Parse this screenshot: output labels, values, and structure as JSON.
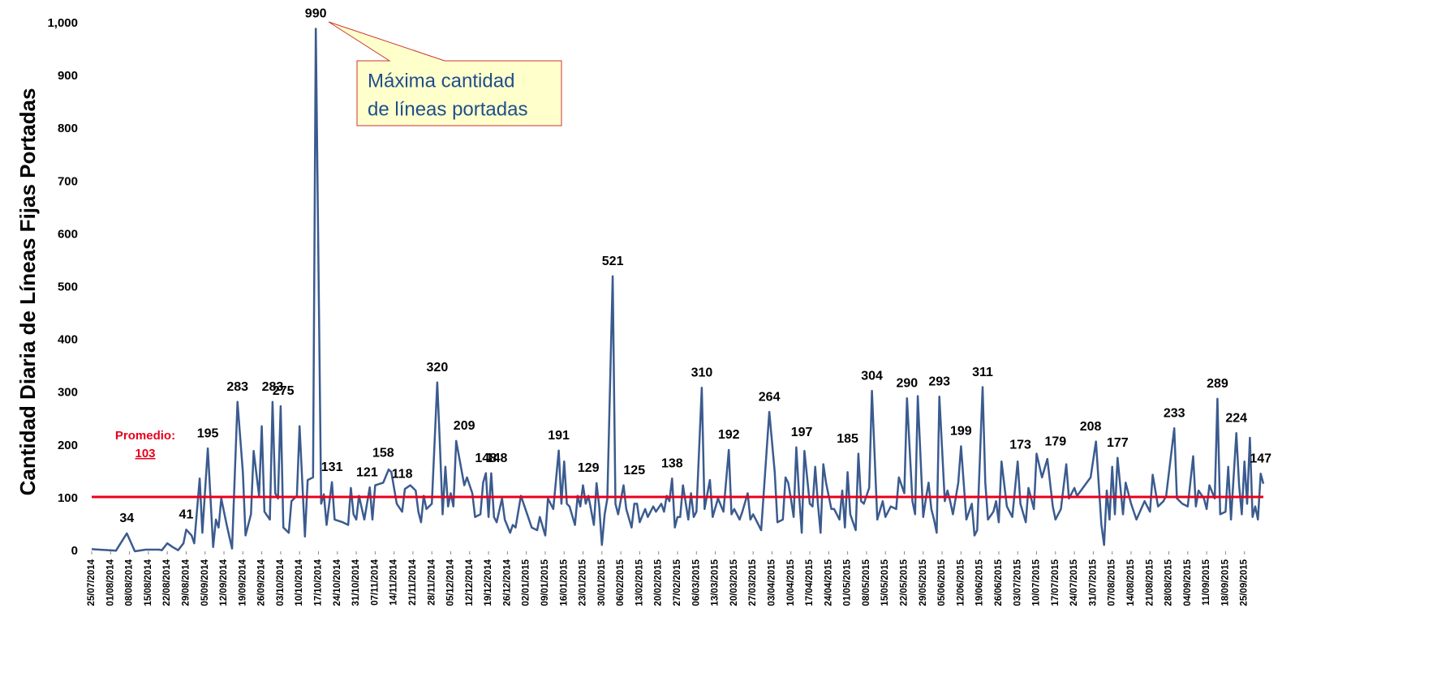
{
  "chart_data": {
    "type": "line",
    "y_label": "Cantidad Diaria de Líneas Fijas Portadas",
    "color": "#3b5b8f",
    "ylim": [
      0,
      1000
    ],
    "yticks": [
      0,
      100,
      200,
      300,
      400,
      500,
      600,
      700,
      800,
      900,
      {
        "value": 1000,
        "label": "1,000"
      }
    ],
    "xlim": [
      "25/07/2014",
      "02/10/2015"
    ],
    "xticks": [
      "25/07/2014",
      "01/08/2014",
      "08/08/2014",
      "15/08/2014",
      "22/08/2014",
      "29/08/2014",
      "05/09/2014",
      "12/09/2014",
      "19/09/2014",
      "26/09/2014",
      "03/10/2014",
      "10/10/2014",
      "17/10/2014",
      "24/10/2014",
      "31/10/2014",
      "07/11/2014",
      "14/11/2014",
      "21/11/2014",
      "28/11/2014",
      "05/12/2014",
      "12/12/2014",
      "19/12/2014",
      "26/12/2014",
      "02/01/2015",
      "09/01/2015",
      "16/01/2015",
      "23/01/2015",
      "30/01/2015",
      "06/02/2015",
      "13/02/2015",
      "20/02/2015",
      "27/02/2015",
      "06/03/2015",
      "13/03/2015",
      "20/03/2015",
      "27/03/2015",
      "03/04/2015",
      "10/04/2015",
      "17/04/2015",
      "24/04/2015",
      "01/05/2015",
      "08/05/2015",
      "15/05/2015",
      "22/05/2015",
      "29/05/2015",
      "05/06/2015",
      "12/06/2015",
      "19/06/2015",
      "26/06/2015",
      "03/07/2015",
      "10/07/2015",
      "17/07/2015",
      "24/07/2015",
      "31/07/2015",
      "07/08/2015",
      "14/08/2015",
      "21/08/2015",
      "28/08/2015",
      "04/09/2015",
      "11/09/2015",
      "18/09/2015",
      "25/09/2015"
    ],
    "x": [
      "25/07/2014",
      "03/08/2014",
      "07/08/2014",
      "10/08/2014",
      "14/08/2014",
      "19/08/2014",
      "20/08/2014",
      "22/08/2014",
      "24/08/2014",
      "26/08/2014",
      "28/08/2014",
      "29/08/2014",
      "31/08/2014",
      "01/09/2014",
      "03/09/2014",
      "04/09/2014",
      "06/09/2014",
      "08/09/2014",
      "09/09/2014",
      "10/09/2014",
      "11/09/2014",
      "13/09/2014",
      "15/09/2014",
      "17/09/2014",
      "19/09/2014",
      "20/09/2014",
      "22/09/2014",
      "23/09/2014",
      "25/09/2014",
      "26/09/2014",
      "27/09/2014",
      "29/09/2014",
      "30/09/2014",
      "01/10/2014",
      "02/10/2014",
      "03/10/2014",
      "04/10/2014",
      "06/10/2014",
      "07/10/2014",
      "09/10/2014",
      "10/10/2014",
      "12/10/2014",
      "13/10/2014",
      "15/10/2014",
      "16/10/2014",
      "18/10/2014",
      "19/10/2014",
      "20/10/2014",
      "22/10/2014",
      "23/10/2014",
      "26/10/2014",
      "28/10/2014",
      "29/10/2014",
      "30/10/2014",
      "31/10/2014",
      "01/11/2014",
      "03/11/2014",
      "05/11/2014",
      "06/11/2014",
      "07/11/2014",
      "10/11/2014",
      "12/11/2014",
      "13/11/2014",
      "15/11/2014",
      "17/11/2014",
      "18/11/2014",
      "20/11/2014",
      "22/11/2014",
      "23/11/2014",
      "24/11/2014",
      "25/11/2014",
      "26/11/2014",
      "28/11/2014",
      "30/11/2014",
      "01/12/2014",
      "02/12/2014",
      "03/12/2014",
      "04/12/2014",
      "05/12/2014",
      "06/12/2014",
      "07/12/2014",
      "10/12/2014",
      "11/12/2014",
      "13/12/2014",
      "14/12/2014",
      "16/12/2014",
      "17/12/2014",
      "18/12/2014",
      "19/12/2014",
      "20/12/2014",
      "21/12/2014",
      "22/12/2014",
      "24/12/2014",
      "25/12/2014",
      "27/12/2014",
      "28/12/2014",
      "29/12/2014",
      "31/12/2014",
      "04/01/2015",
      "06/01/2015",
      "07/01/2015",
      "09/01/2015",
      "10/01/2015",
      "12/01/2015",
      "14/01/2015",
      "15/01/2015",
      "16/01/2015",
      "17/01/2015",
      "18/01/2015",
      "20/01/2015",
      "21/01/2015",
      "22/01/2015",
      "23/01/2015",
      "24/01/2015",
      "25/01/2015",
      "27/01/2015",
      "28/01/2015",
      "29/01/2015",
      "30/01/2015",
      "31/01/2015",
      "01/02/2015",
      "03/02/2015",
      "04/02/2015",
      "05/02/2015",
      "07/02/2015",
      "08/02/2015",
      "10/02/2015",
      "11/02/2015",
      "12/02/2015",
      "13/02/2015",
      "15/02/2015",
      "16/02/2015",
      "18/02/2015",
      "19/02/2015",
      "21/02/2015",
      "22/02/2015",
      "23/02/2015",
      "24/02/2015",
      "25/02/2015",
      "26/02/2015",
      "27/02/2015",
      "28/02/2015",
      "01/03/2015",
      "03/03/2015",
      "04/03/2015",
      "05/03/2015",
      "06/03/2015",
      "08/03/2015",
      "09/03/2015",
      "11/03/2015",
      "12/03/2015",
      "14/03/2015",
      "16/03/2015",
      "18/03/2015",
      "19/03/2015",
      "20/03/2015",
      "22/03/2015",
      "23/03/2015",
      "25/03/2015",
      "26/03/2015",
      "27/03/2015",
      "30/03/2015",
      "02/04/2015",
      "04/04/2015",
      "05/04/2015",
      "07/04/2015",
      "08/04/2015",
      "09/04/2015",
      "10/04/2015",
      "11/04/2015",
      "12/04/2015",
      "13/04/2015",
      "14/04/2015",
      "15/04/2015",
      "17/04/2015",
      "18/04/2015",
      "19/04/2015",
      "20/04/2015",
      "21/04/2015",
      "22/04/2015",
      "23/04/2015",
      "25/04/2015",
      "26/04/2015",
      "28/04/2015",
      "29/04/2015",
      "30/04/2015",
      "01/05/2015",
      "02/05/2015",
      "04/05/2015",
      "05/05/2015",
      "06/05/2015",
      "07/05/2015",
      "09/05/2015",
      "10/05/2015",
      "12/05/2015",
      "14/05/2015",
      "15/05/2015",
      "17/05/2015",
      "19/05/2015",
      "20/05/2015",
      "22/05/2015",
      "23/05/2015",
      "25/05/2015",
      "26/05/2015",
      "27/05/2015",
      "29/05/2015",
      "30/05/2015",
      "31/05/2015",
      "01/06/2015",
      "02/06/2015",
      "03/06/2015",
      "04/06/2015",
      "06/06/2015",
      "07/06/2015",
      "08/06/2015",
      "09/06/2015",
      "11/06/2015",
      "12/06/2015",
      "14/06/2015",
      "15/06/2015",
      "16/06/2015",
      "17/06/2015",
      "18/06/2015",
      "20/06/2015",
      "21/06/2015",
      "22/06/2015",
      "24/06/2015",
      "25/06/2015",
      "26/06/2015",
      "27/06/2015",
      "29/06/2015",
      "01/07/2015",
      "03/07/2015",
      "04/07/2015",
      "06/07/2015",
      "07/07/2015",
      "09/07/2015",
      "10/07/2015",
      "12/07/2015",
      "14/07/2015",
      "16/07/2015",
      "17/07/2015",
      "19/07/2015",
      "21/07/2015",
      "22/07/2015",
      "24/07/2015",
      "25/07/2015",
      "30/07/2015",
      "01/08/2015",
      "03/08/2015",
      "04/08/2015",
      "05/08/2015",
      "06/08/2015",
      "07/08/2015",
      "08/08/2015",
      "09/08/2015",
      "11/08/2015",
      "12/08/2015",
      "14/08/2015",
      "16/08/2015",
      "19/08/2015",
      "21/08/2015",
      "22/08/2015",
      "24/08/2015",
      "26/08/2015",
      "27/08/2015",
      "30/08/2015",
      "31/08/2015",
      "02/09/2015",
      "04/09/2015",
      "06/09/2015",
      "07/09/2015",
      "08/09/2015",
      "10/09/2015",
      "11/09/2015",
      "12/09/2015",
      "14/09/2015",
      "15/09/2015",
      "16/09/2015",
      "18/09/2015",
      "19/09/2015",
      "20/09/2015",
      "22/09/2015",
      "23/09/2015",
      "24/09/2015",
      "25/09/2015",
      "26/09/2015",
      "27/09/2015",
      "28/09/2015",
      "29/09/2015",
      "30/09/2015",
      "01/10/2015",
      "02/10/2015"
    ],
    "values": [
      4,
      1,
      34,
      0,
      3,
      3,
      2,
      15,
      8,
      2,
      15,
      41,
      30,
      15,
      138,
      35,
      195,
      8,
      60,
      45,
      100,
      50,
      5,
      283,
      150,
      30,
      70,
      190,
      105,
      237,
      75,
      60,
      283,
      110,
      100,
      275,
      45,
      35,
      95,
      105,
      237,
      28,
      135,
      140,
      990,
      90,
      108,
      50,
      131,
      60,
      55,
      50,
      120,
      70,
      60,
      105,
      60,
      121,
      60,
      125,
      130,
      155,
      150,
      90,
      75,
      118,
      125,
      115,
      75,
      55,
      105,
      80,
      90,
      320,
      200,
      70,
      160,
      85,
      110,
      85,
      209,
      125,
      140,
      110,
      65,
      70,
      130,
      148,
      65,
      148,
      65,
      55,
      100,
      60,
      35,
      50,
      45,
      105,
      45,
      40,
      65,
      30,
      100,
      80,
      191,
      90,
      170,
      90,
      85,
      50,
      105,
      85,
      125,
      90,
      105,
      50,
      129,
      85,
      12,
      70,
      100,
      521,
      90,
      70,
      125,
      80,
      45,
      90,
      90,
      55,
      80,
      65,
      85,
      75,
      90,
      75,
      105,
      95,
      138,
      45,
      65,
      65,
      125,
      60,
      110,
      65,
      75,
      310,
      80,
      135,
      65,
      100,
      75,
      192,
      70,
      80,
      60,
      75,
      110,
      60,
      70,
      40,
      264,
      150,
      55,
      60,
      140,
      130,
      100,
      65,
      197,
      110,
      35,
      190,
      90,
      85,
      160,
      90,
      35,
      165,
      130,
      80,
      80,
      60,
      115,
      45,
      150,
      70,
      40,
      185,
      95,
      90,
      120,
      304,
      60,
      95,
      65,
      85,
      80,
      140,
      110,
      290,
      95,
      70,
      294,
      65,
      100,
      130,
      80,
      60,
      35,
      293,
      95,
      115,
      95,
      70,
      130,
      199,
      60,
      75,
      90,
      30,
      40,
      311,
      130,
      60,
      75,
      95,
      55,
      170,
      85,
      65,
      170,
      90,
      55,
      120,
      80,
      185,
      140,
      175,
      85,
      60,
      80,
      165,
      100,
      120,
      105,
      140,
      208,
      50,
      12,
      115,
      60,
      160,
      70,
      177,
      70,
      130,
      90,
      60,
      95,
      75,
      145,
      85,
      95,
      105,
      233,
      100,
      90,
      85,
      180,
      85,
      115,
      100,
      80,
      125,
      100,
      289,
      70,
      75,
      160,
      60,
      224,
      125,
      70,
      170,
      90,
      215,
      65,
      85,
      60,
      147,
      128
    ],
    "data_labels": [
      {
        "x": "07/08/2014",
        "value": 34
      },
      {
        "x": "29/08/2014",
        "value": 41
      },
      {
        "x": "06/09/2014",
        "value": 195
      },
      {
        "x": "17/09/2014",
        "value": 283
      },
      {
        "x": "30/09/2014",
        "value": 283
      },
      {
        "x": "04/10/2014",
        "value": 275
      },
      {
        "x": "16/10/2014",
        "value": 990,
        "color": "#e8001c"
      },
      {
        "x": "22/10/2014",
        "value": 131
      },
      {
        "x": "04/11/2014",
        "value": 121
      },
      {
        "x": "10/11/2014",
        "value": 158
      },
      {
        "x": "17/11/2014",
        "value": 118
      },
      {
        "x": "30/11/2014",
        "value": 320
      },
      {
        "x": "10/12/2014",
        "value": 209
      },
      {
        "x": "18/12/2014",
        "value": 148
      },
      {
        "x": "22/12/2014",
        "value": 148
      },
      {
        "x": "14/01/2015",
        "value": 191
      },
      {
        "x": "25/01/2015",
        "value": 129
      },
      {
        "x": "03/02/2015",
        "value": 521
      },
      {
        "x": "11/02/2015",
        "value": 125
      },
      {
        "x": "25/02/2015",
        "value": 138
      },
      {
        "x": "08/03/2015",
        "value": 310
      },
      {
        "x": "18/03/2015",
        "value": 192
      },
      {
        "x": "02/04/2015",
        "value": 264
      },
      {
        "x": "14/04/2015",
        "value": 197
      },
      {
        "x": "01/05/2015",
        "value": 185
      },
      {
        "x": "10/05/2015",
        "value": 304
      },
      {
        "x": "23/05/2015",
        "value": 290
      },
      {
        "x": "04/06/2015",
        "value": 293
      },
      {
        "x": "20/06/2015",
        "value": 311
      },
      {
        "x": "12/06/2015",
        "value": 199
      },
      {
        "x": "04/07/2015",
        "value": 173
      },
      {
        "x": "17/07/2015",
        "value": 179
      },
      {
        "x": "30/07/2015",
        "value": 208
      },
      {
        "x": "09/08/2015",
        "value": 177
      },
      {
        "x": "30/08/2015",
        "value": 233
      },
      {
        "x": "15/09/2015",
        "value": 289
      },
      {
        "x": "22/09/2015",
        "value": 224
      },
      {
        "x": "01/10/2015",
        "value": 147
      }
    ],
    "average": {
      "label": "Promedio:",
      "value": 103,
      "color": "#e8001c"
    },
    "callout": [
      "Máxima cantidad",
      "de líneas portadas"
    ]
  }
}
